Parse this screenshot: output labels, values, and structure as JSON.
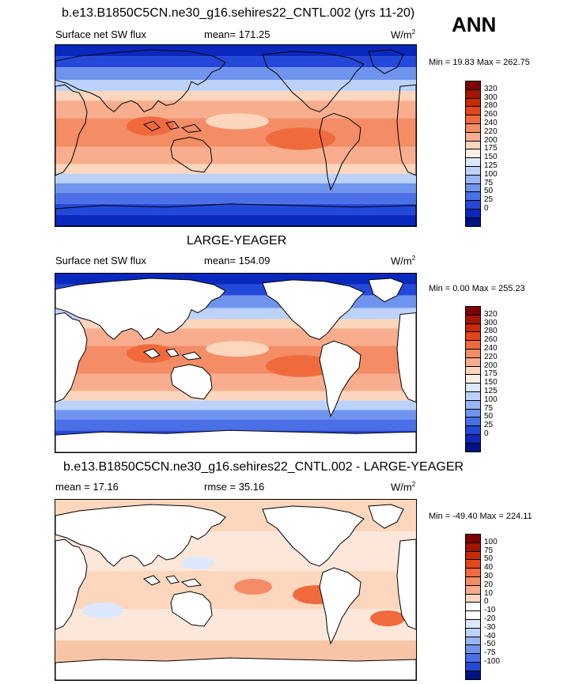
{
  "season": "ANN",
  "panels": [
    {
      "title": "b.e13.B1850C5CN.ne30_g16.sehires22_CNTL.002 (yrs 11-20)",
      "left_label": "Surface net SW flux",
      "stat_label": "mean= 171.25",
      "units": "W/m",
      "units_exp": "2",
      "minmax": "Min =  19.83 Max = 262.75",
      "colorbar": [
        "320",
        "300",
        "280",
        "260",
        "240",
        "220",
        "200",
        "175",
        "150",
        "125",
        "100",
        "75",
        "50",
        "25",
        "0"
      ]
    },
    {
      "title": "LARGE-YEAGER",
      "left_label": "Surface net SW flux",
      "stat_label": "mean= 154.09",
      "units": "W/m",
      "units_exp": "2",
      "minmax": "Min =   0.00 Max = 255.23",
      "colorbar": [
        "320",
        "300",
        "280",
        "260",
        "240",
        "220",
        "200",
        "175",
        "150",
        "125",
        "100",
        "75",
        "50",
        "25",
        "0"
      ]
    },
    {
      "title": "b.e13.B1850C5CN.ne30_g16.sehires22_CNTL.002 - LARGE-YEAGER",
      "left_label": "mean =  17.16",
      "stat_label": "rmse =  35.16",
      "units": "W/m",
      "units_exp": "2",
      "minmax": "Min = -49.40 Max = 224.11",
      "colorbar": [
        "100",
        "75",
        "50",
        "40",
        "30",
        "20",
        "10",
        "0",
        "-10",
        "-20",
        "-30",
        "-40",
        "-50",
        "-75",
        "-100"
      ]
    }
  ],
  "colors": {
    "scale": [
      "#7f0000",
      "#a41500",
      "#c92a00",
      "#e4461b",
      "#f06a3e",
      "#f48c65",
      "#f8ae8e",
      "#fcd6bd",
      "#ffffff",
      "#dce8fd",
      "#bcd2fb",
      "#98b6f5",
      "#6f94ee",
      "#4a6fe6",
      "#2448d9",
      "#0a28be",
      "#001283"
    ]
  }
}
